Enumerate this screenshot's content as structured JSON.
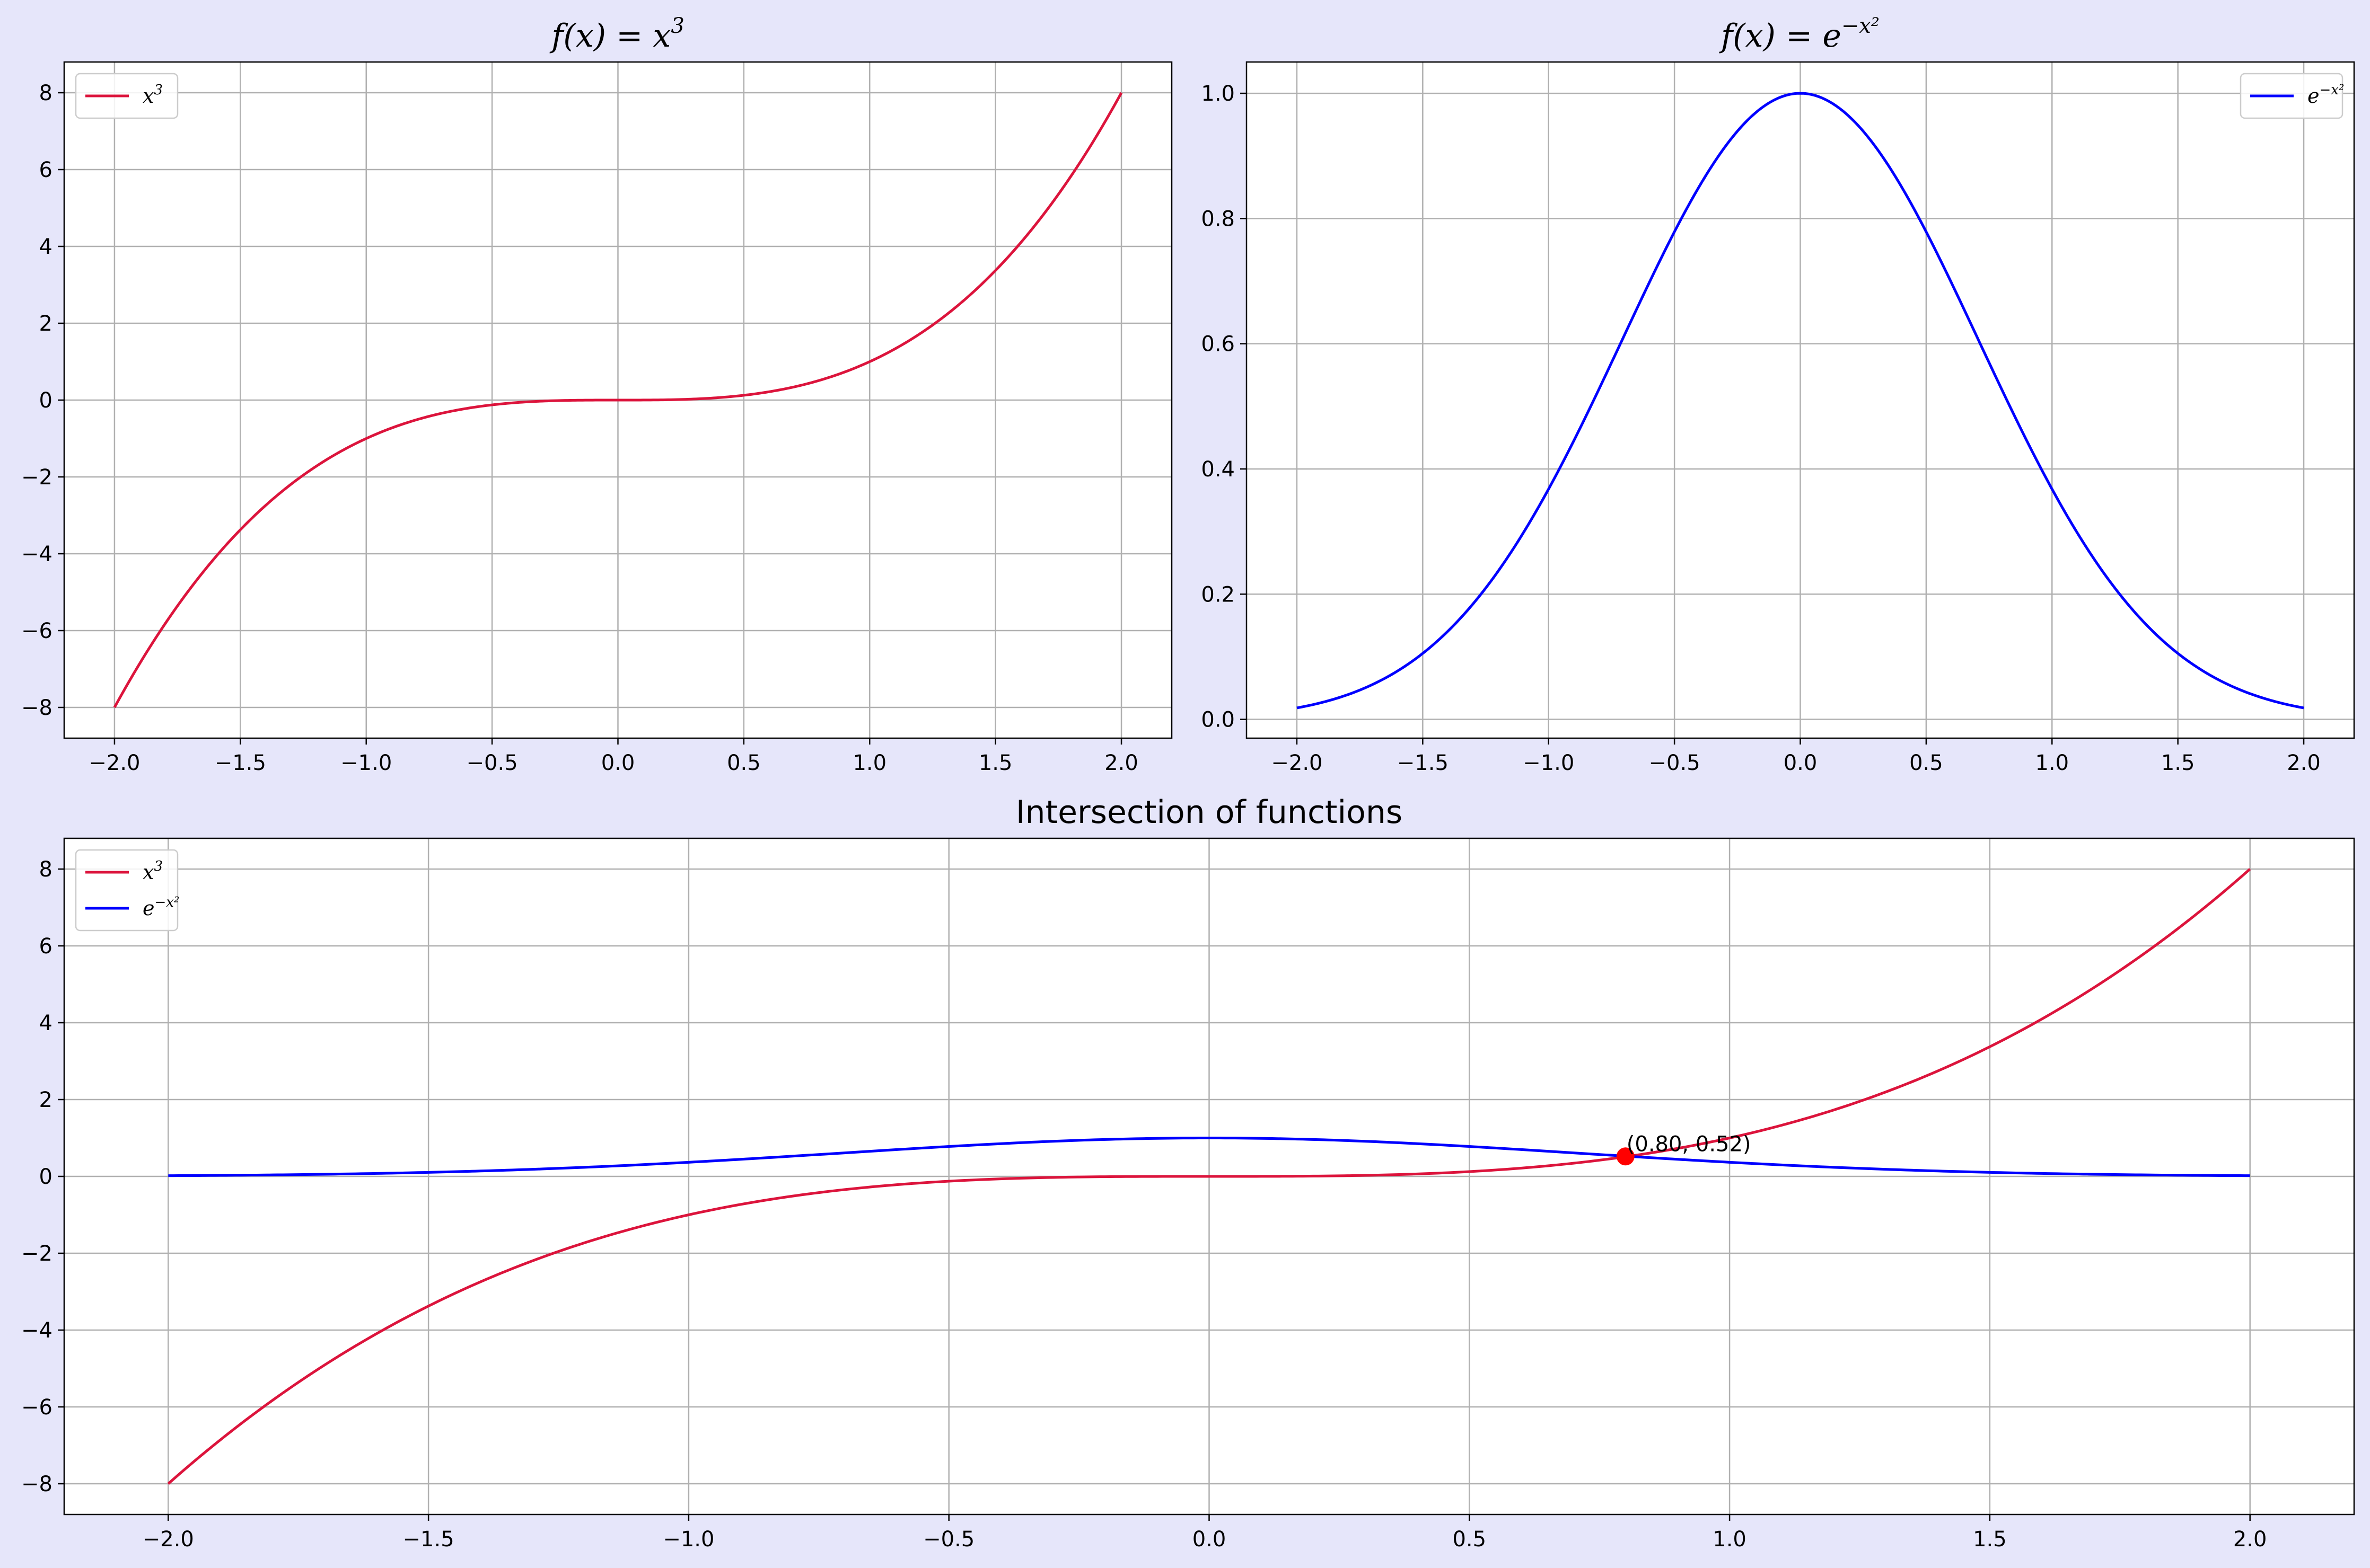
{
  "chart_data": [
    {
      "type": "line",
      "title": {
        "lhs": "f(x) = x",
        "sup": "3"
      },
      "xlim": [
        -2.2,
        2.2
      ],
      "ylim": [
        -8.8,
        8.8
      ],
      "xticks": [
        -2.0,
        -1.5,
        -1.0,
        -0.5,
        0.0,
        0.5,
        1.0,
        1.5,
        2.0
      ],
      "xtick_labels": [
        "−2.0",
        "−1.5",
        "−1.0",
        "−0.5",
        "0.0",
        "0.5",
        "1.0",
        "1.5",
        "2.0"
      ],
      "yticks": [
        8,
        6,
        4,
        2,
        0,
        -2,
        -4,
        -6,
        -8
      ],
      "ytick_labels": [
        "8",
        "6",
        "4",
        "2",
        "0",
        "−2",
        "−4",
        "−6",
        "−8"
      ],
      "grid": true,
      "legend_position": "upper-left",
      "series": [
        {
          "name": {
            "base": "x",
            "sup": "3"
          },
          "function": "x^3",
          "x_range": [
            -2,
            2
          ],
          "color": "#dc143c"
        }
      ]
    },
    {
      "type": "line",
      "title": {
        "lhs": "f(x) = e",
        "sup": "−x²"
      },
      "xlim": [
        -2.2,
        2.2
      ],
      "ylim": [
        -0.03,
        1.05
      ],
      "xticks": [
        -2.0,
        -1.5,
        -1.0,
        -0.5,
        0.0,
        0.5,
        1.0,
        1.5,
        2.0
      ],
      "xtick_labels": [
        "−2.0",
        "−1.5",
        "−1.0",
        "−0.5",
        "0.0",
        "0.5",
        "1.0",
        "1.5",
        "2.0"
      ],
      "yticks": [
        1.0,
        0.8,
        0.6,
        0.4,
        0.2,
        0.0
      ],
      "ytick_labels": [
        "1.0",
        "0.8",
        "0.6",
        "0.4",
        "0.2",
        "0.0"
      ],
      "grid": true,
      "legend_position": "upper-right",
      "series": [
        {
          "name": {
            "base": "e",
            "sup": "−x²"
          },
          "function": "exp(-x^2)",
          "x_range": [
            -2,
            2
          ],
          "color": "#0000ff"
        }
      ]
    },
    {
      "type": "line",
      "title": {
        "text": "Intersection of functions"
      },
      "xlim": [
        -2.2,
        2.2
      ],
      "ylim": [
        -8.8,
        8.8
      ],
      "xticks": [
        -2.0,
        -1.5,
        -1.0,
        -0.5,
        0.0,
        0.5,
        1.0,
        1.5,
        2.0
      ],
      "xtick_labels": [
        "−2.0",
        "−1.5",
        "−1.0",
        "−0.5",
        "0.0",
        "0.5",
        "1.0",
        "1.5",
        "2.0"
      ],
      "yticks": [
        8,
        6,
        4,
        2,
        0,
        -2,
        -4,
        -6,
        -8
      ],
      "ytick_labels": [
        "8",
        "6",
        "4",
        "2",
        "0",
        "−2",
        "−4",
        "−6",
        "−8"
      ],
      "grid": true,
      "legend_position": "upper-left",
      "series": [
        {
          "name": {
            "base": "x",
            "sup": "3"
          },
          "function": "x^3",
          "x_range": [
            -2,
            2
          ],
          "color": "#dc143c"
        },
        {
          "name": {
            "base": "e",
            "sup": "−x²"
          },
          "function": "exp(-x^2)",
          "x_range": [
            -2,
            2
          ],
          "color": "#0000ff"
        }
      ],
      "annotations": [
        {
          "x": 0.8,
          "y": 0.52,
          "label": "(0.80, 0.52)",
          "marker_color": "#ff0000"
        }
      ]
    }
  ]
}
